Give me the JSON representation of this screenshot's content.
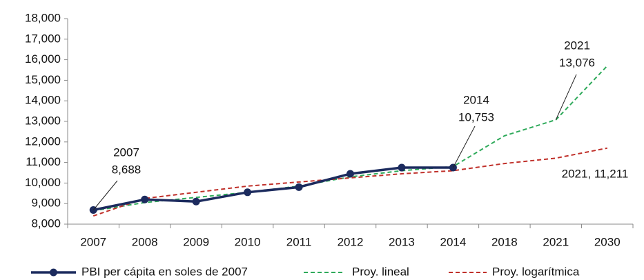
{
  "chart_data": {
    "type": "line",
    "categories": [
      "2007",
      "2008",
      "2009",
      "2010",
      "2011",
      "2012",
      "2013",
      "2014",
      "2018",
      "2021",
      "2030"
    ],
    "series": [
      {
        "name": "PBI per cápita en soles de 2007",
        "color": "#1c2b5e",
        "dashed": false,
        "markers": true,
        "values": [
          8688,
          9200,
          9100,
          9550,
          9800,
          10450,
          10750,
          10753,
          null,
          null,
          null
        ]
      },
      {
        "name": "Proy. lineal",
        "color": "#2eaa5a",
        "dashed": true,
        "markers": false,
        "values": [
          8650,
          9050,
          9300,
          9550,
          9850,
          10300,
          10600,
          10800,
          12300,
          13076,
          15700
        ]
      },
      {
        "name": "Proy. logarítmica",
        "color": "#c0302a",
        "dashed": true,
        "markers": false,
        "values": [
          8400,
          9250,
          9550,
          9850,
          10050,
          10250,
          10450,
          10600,
          10950,
          11211,
          11700
        ]
      }
    ],
    "ylim": [
      8000,
      18000
    ],
    "yticks": [
      {
        "value": 8000,
        "label": "8,000"
      },
      {
        "value": 9000,
        "label": "9,000"
      },
      {
        "value": 10000,
        "label": "10,000"
      },
      {
        "value": 11000,
        "label": "11,000"
      },
      {
        "value": 12000,
        "label": "12,000"
      },
      {
        "value": 13000,
        "label": "13,000"
      },
      {
        "value": 14000,
        "label": "14,000"
      },
      {
        "value": 15000,
        "label": "15,000"
      },
      {
        "value": 16000,
        "label": "16,000"
      },
      {
        "value": 17000,
        "label": "17,000"
      },
      {
        "value": 18000,
        "label": "18,000"
      }
    ],
    "grid": false,
    "legend": "bottom",
    "annotations": [
      {
        "lines": [
          "2007",
          "8,688"
        ]
      },
      {
        "lines": [
          "2014",
          "10,753"
        ]
      },
      {
        "lines": [
          "2021",
          "13,076"
        ]
      },
      {
        "lines": [
          "2021,  11,211"
        ]
      }
    ]
  }
}
